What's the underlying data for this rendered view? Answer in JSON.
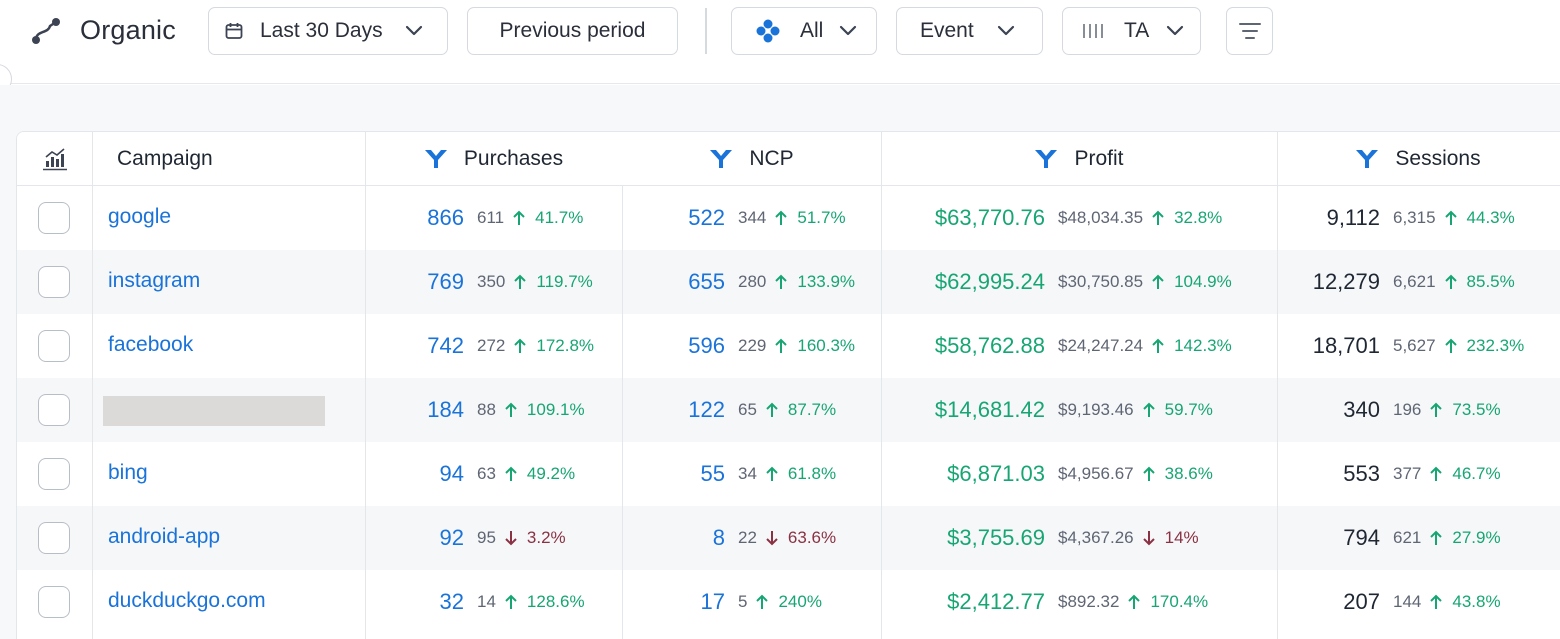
{
  "header": {
    "title": "Organic",
    "date_range": "Last 30 Days",
    "compare": "Previous period",
    "channel": "All",
    "event": "Event",
    "attribution": "TA"
  },
  "table": {
    "columns": {
      "campaign": "Campaign",
      "purchases": "Purchases",
      "ncp": "NCP",
      "profit": "Profit",
      "sessions": "Sessions"
    },
    "rows": [
      {
        "campaign": "google",
        "purchases": {
          "value": "866",
          "prev": "611",
          "change": "41.7%",
          "dir": "up"
        },
        "ncp": {
          "value": "522",
          "prev": "344",
          "change": "51.7%",
          "dir": "up"
        },
        "profit": {
          "value": "$63,770.76",
          "prev": "$48,034.35",
          "change": "32.8%",
          "dir": "up"
        },
        "sessions": {
          "value": "9,112",
          "prev": "6,315",
          "change": "44.3%",
          "dir": "up"
        }
      },
      {
        "campaign": "instagram",
        "purchases": {
          "value": "769",
          "prev": "350",
          "change": "119.7%",
          "dir": "up"
        },
        "ncp": {
          "value": "655",
          "prev": "280",
          "change": "133.9%",
          "dir": "up"
        },
        "profit": {
          "value": "$62,995.24",
          "prev": "$30,750.85",
          "change": "104.9%",
          "dir": "up"
        },
        "sessions": {
          "value": "12,279",
          "prev": "6,621",
          "change": "85.5%",
          "dir": "up"
        }
      },
      {
        "campaign": "facebook",
        "purchases": {
          "value": "742",
          "prev": "272",
          "change": "172.8%",
          "dir": "up"
        },
        "ncp": {
          "value": "596",
          "prev": "229",
          "change": "160.3%",
          "dir": "up"
        },
        "profit": {
          "value": "$58,762.88",
          "prev": "$24,247.24",
          "change": "142.3%",
          "dir": "up"
        },
        "sessions": {
          "value": "18,701",
          "prev": "5,627",
          "change": "232.3%",
          "dir": "up"
        }
      },
      {
        "campaign": "",
        "purchases": {
          "value": "184",
          "prev": "88",
          "change": "109.1%",
          "dir": "up"
        },
        "ncp": {
          "value": "122",
          "prev": "65",
          "change": "87.7%",
          "dir": "up"
        },
        "profit": {
          "value": "$14,681.42",
          "prev": "$9,193.46",
          "change": "59.7%",
          "dir": "up"
        },
        "sessions": {
          "value": "340",
          "prev": "196",
          "change": "73.5%",
          "dir": "up"
        }
      },
      {
        "campaign": "bing",
        "purchases": {
          "value": "94",
          "prev": "63",
          "change": "49.2%",
          "dir": "up"
        },
        "ncp": {
          "value": "55",
          "prev": "34",
          "change": "61.8%",
          "dir": "up"
        },
        "profit": {
          "value": "$6,871.03",
          "prev": "$4,956.67",
          "change": "38.6%",
          "dir": "up"
        },
        "sessions": {
          "value": "553",
          "prev": "377",
          "change": "46.7%",
          "dir": "up"
        }
      },
      {
        "campaign": "android-app",
        "purchases": {
          "value": "92",
          "prev": "95",
          "change": "3.2%",
          "dir": "down"
        },
        "ncp": {
          "value": "8",
          "prev": "22",
          "change": "63.6%",
          "dir": "down"
        },
        "profit": {
          "value": "$3,755.69",
          "prev": "$4,367.26",
          "change": "14%",
          "dir": "down"
        },
        "sessions": {
          "value": "794",
          "prev": "621",
          "change": "27.9%",
          "dir": "up"
        }
      },
      {
        "campaign": "duckduckgo.com",
        "purchases": {
          "value": "32",
          "prev": "14",
          "change": "128.6%",
          "dir": "up"
        },
        "ncp": {
          "value": "17",
          "prev": "5",
          "change": "240%",
          "dir": "up"
        },
        "profit": {
          "value": "$2,412.77",
          "prev": "$892.32",
          "change": "170.4%",
          "dir": "up"
        },
        "sessions": {
          "value": "207",
          "prev": "144",
          "change": "43.8%",
          "dir": "up"
        }
      }
    ]
  },
  "icons": {
    "brand": "channel-path-icon",
    "date": "calendar-icon",
    "channel": "four-dots-icon",
    "attribution": "columns-bars-icon",
    "menu": "menu-lines-icon",
    "chart": "chart-icon",
    "funnel": "funnel-icon",
    "up": "arrow-up-icon",
    "down": "arrow-down-icon"
  },
  "colors": {
    "link": "#1a73d9",
    "money": "#17a673",
    "positive": "#17a673",
    "negative": "#8a3243",
    "accent": "#1a73d9"
  }
}
